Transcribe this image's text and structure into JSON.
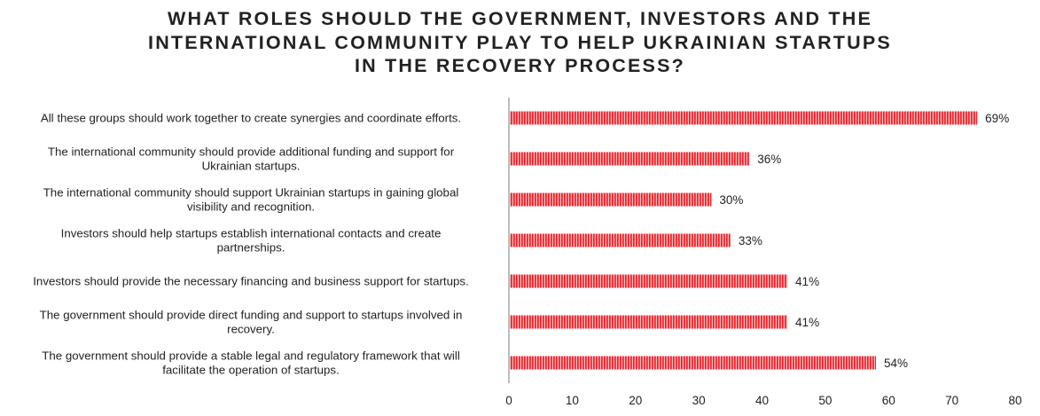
{
  "chart_data": {
    "type": "bar",
    "orientation": "horizontal",
    "title": "WHAT ROLES SHOULD THE GOVERNMENT, INVESTORS AND THE\nINTERNATIONAL COMMUNITY PLAY TO HELP UKRAINIAN STARTUPS\nIN THE RECOVERY PROCESS?",
    "xlabel": "",
    "ylabel": "",
    "xlim": [
      0,
      80
    ],
    "xticks": [
      "0",
      "10",
      "20",
      "30",
      "40",
      "50",
      "60",
      "70",
      "80"
    ],
    "grid": false,
    "legend": "none",
    "bar_color": "#e8232b",
    "categories": [
      [
        "All these groups should work together to create synergies and coordinate efforts."
      ],
      [
        "The international community should provide additional funding and support for",
        "Ukrainian startups."
      ],
      [
        "The international community should support Ukrainian startups in gaining global",
        "visibility and recognition."
      ],
      [
        "Investors should help startups establish international contacts and create",
        "partnerships."
      ],
      [
        "Investors should provide the necessary financing and business support for startups."
      ],
      [
        "The government should provide direct funding and support to startups involved in",
        "recovery."
      ],
      [
        "The government should provide a stable legal and regulatory framework that will",
        "facilitate the operation of startups."
      ]
    ],
    "values": [
      74,
      38,
      32,
      35,
      44,
      44,
      58
    ],
    "data_labels": [
      "69%",
      "36%",
      "30%",
      "33%",
      "41%",
      "41%",
      "54%"
    ]
  }
}
